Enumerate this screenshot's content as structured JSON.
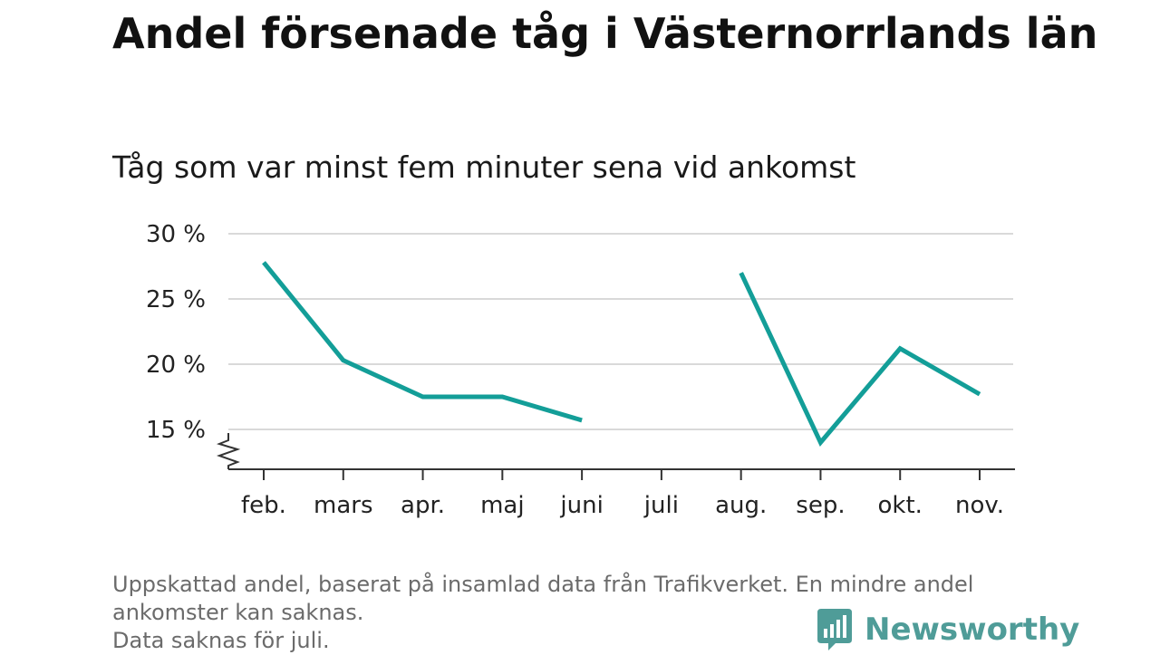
{
  "chart_data": {
    "type": "line",
    "title": "Andel försenade tåg i Västernorrlands län",
    "subtitle": "Tåg som var minst fem minuter sena vid ankomst",
    "categories": [
      "feb.",
      "mars",
      "apr.",
      "maj",
      "juni",
      "juli",
      "aug.",
      "sep.",
      "okt.",
      "nov."
    ],
    "series": [
      {
        "values": [
          27.8,
          20.3,
          17.5,
          17.5,
          15.7,
          null,
          27.0,
          14.0,
          21.2,
          17.7
        ]
      }
    ],
    "yticks": [
      15,
      20,
      25,
      30
    ],
    "ytick_suffix": " %",
    "ylim": [
      12,
      30
    ],
    "axis_break": true,
    "grid": true,
    "legend": "none",
    "colors": {
      "line": "#139e98",
      "grid": "#d9d9d9",
      "axis": "#333333"
    }
  },
  "footnote": {
    "line1": "Uppskattad andel, baserat på insamlad data från Trafikverket. En mindre andel",
    "line2": "ankomster kan saknas.",
    "line3": "Data saknas för juli."
  },
  "brand": {
    "name": "Newsworthy",
    "color": "#4f9c98"
  }
}
